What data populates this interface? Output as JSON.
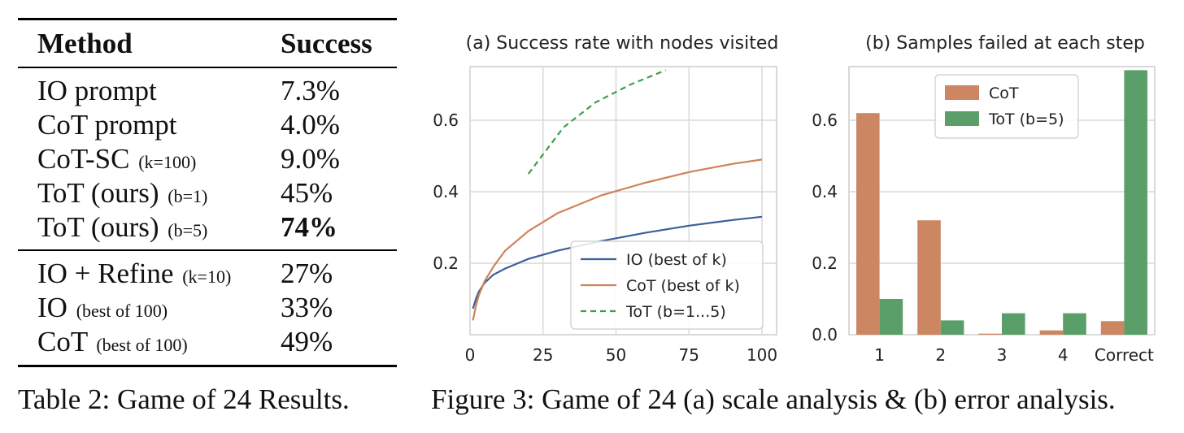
{
  "table": {
    "headers": {
      "method": "Method",
      "success": "Success"
    },
    "rows": [
      {
        "method": "IO prompt",
        "note": "",
        "success": "7.3%",
        "bold": false
      },
      {
        "method": "CoT prompt",
        "note": "",
        "success": "4.0%",
        "bold": false
      },
      {
        "method": "CoT-SC",
        "note": "(k=100)",
        "success": "9.0%",
        "bold": false
      },
      {
        "method": "ToT (ours)",
        "note": "(b=1)",
        "success": "45%",
        "bold": false
      },
      {
        "method": "ToT (ours)",
        "note": "(b=5)",
        "success": "74%",
        "bold": true
      }
    ],
    "rows2": [
      {
        "method": "IO + Refine",
        "note": "(k=10)",
        "success": "27%"
      },
      {
        "method": "IO",
        "note": "(best of 100)",
        "success": "33%"
      },
      {
        "method": "CoT",
        "note": "(best of 100)",
        "success": "49%"
      }
    ],
    "caption": "Table 2: Game of 24 Results."
  },
  "figure_caption": "Figure 3: Game of 24 (a) scale analysis & (b) error analysis.",
  "colors": {
    "io": "#3b5f9a",
    "cot": "#d0835a",
    "tot": "#3b9e4e",
    "cot_bar": "#cc8661",
    "tot_bar": "#5a9e6a",
    "grid": "#d9d9d9",
    "frame": "#cccccc"
  },
  "chart_data": [
    {
      "type": "line",
      "title": "(a) Success rate with nodes visited",
      "xlabel": "",
      "ylabel": "",
      "xlim": [
        0,
        105
      ],
      "ylim": [
        0,
        0.75
      ],
      "xticks": [
        0,
        25,
        50,
        75,
        100
      ],
      "xtick_labels": [
        "0",
        "25",
        "50",
        "75",
        "100"
      ],
      "yticks": [
        0.2,
        0.4,
        0.6
      ],
      "ytick_labels": [
        "0.2",
        "0.4",
        "0.6"
      ],
      "grid": true,
      "legend_position": "lower-right",
      "series": [
        {
          "name": "IO (best of k)",
          "style": "solid",
          "color": "#3b5f9a",
          "x": [
            1,
            2,
            3,
            5,
            8,
            12,
            20,
            30,
            45,
            60,
            75,
            90,
            100
          ],
          "y": [
            0.073,
            0.1,
            0.12,
            0.145,
            0.168,
            0.185,
            0.212,
            0.235,
            0.262,
            0.285,
            0.305,
            0.321,
            0.33
          ]
        },
        {
          "name": "CoT (best of k)",
          "style": "solid",
          "color": "#d0835a",
          "x": [
            1,
            2,
            3,
            5,
            8,
            12,
            20,
            30,
            45,
            60,
            75,
            90,
            100
          ],
          "y": [
            0.04,
            0.08,
            0.11,
            0.15,
            0.19,
            0.235,
            0.29,
            0.34,
            0.39,
            0.425,
            0.455,
            0.478,
            0.49
          ]
        },
        {
          "name": "ToT (b=1...5)",
          "style": "dashed",
          "color": "#3b9e4e",
          "x": [
            20,
            32,
            43,
            55,
            67
          ],
          "y": [
            0.45,
            0.58,
            0.65,
            0.7,
            0.74
          ]
        }
      ]
    },
    {
      "type": "bar",
      "title": "(b) Samples failed at each step",
      "xlabel": "",
      "ylabel": "",
      "categories": [
        "1",
        "2",
        "3",
        "4",
        "Correct"
      ],
      "ylim": [
        0,
        0.75
      ],
      "yticks": [
        0.0,
        0.2,
        0.4,
        0.6
      ],
      "ytick_labels": [
        "0.0",
        "0.2",
        "0.4",
        "0.6"
      ],
      "grid": true,
      "legend_position": "top-center",
      "series": [
        {
          "name": "CoT",
          "color": "#cc8661",
          "values": [
            0.62,
            0.32,
            0.003,
            0.012,
            0.038
          ]
        },
        {
          "name": "ToT (b=5)",
          "color": "#5a9e6a",
          "values": [
            0.1,
            0.04,
            0.06,
            0.06,
            0.74
          ]
        }
      ]
    }
  ]
}
